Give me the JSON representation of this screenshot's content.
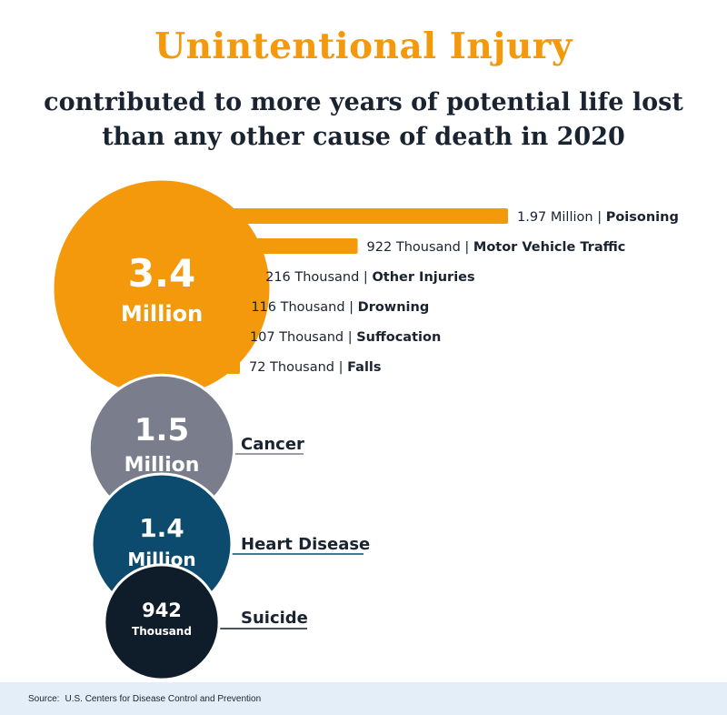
{
  "header": {
    "title": "Unintentional Injury",
    "subtitle_line1": "contributed to more years of potential life lost",
    "subtitle_line2": "than any other cause of death in 2020"
  },
  "colors": {
    "orange": "#F4990B",
    "gray": "#7A7E8C",
    "blue": "#0C4A6E",
    "navy": "#0F1D2B",
    "text": "#1A2330",
    "footer_bg": "#E4EEF8"
  },
  "chart_data": [
    {
      "type": "bubble",
      "series": [
        {
          "name": "Unintentional Injury",
          "value": 3400000,
          "value_line": "3.4",
          "unit_line": "Million",
          "label": ""
        },
        {
          "name": "Cancer",
          "value": 1500000,
          "value_line": "1.5",
          "unit_line": "Million",
          "label": "Cancer"
        },
        {
          "name": "Heart Disease",
          "value": 1400000,
          "value_line": "1.4",
          "unit_line": "Million",
          "label": "Heart Disease"
        },
        {
          "name": "Suicide",
          "value": 942000,
          "value_line": "942",
          "unit_line": "Thousand",
          "label": "Suicide"
        }
      ]
    },
    {
      "type": "bar",
      "orientation": "horizontal",
      "categories": [
        "Poisoning",
        "Motor Vehicle Traffic",
        "Other Injuries",
        "Drowning",
        "Suffocation",
        "Falls"
      ],
      "values": [
        1970000,
        922000,
        216000,
        116000,
        107000,
        72000
      ],
      "value_labels": [
        "1.97 Million |",
        "922 Thousand  |",
        "216 Thousand |",
        "116 Thousand |",
        "107 Thousand |",
        "72 Thousand |"
      ]
    }
  ],
  "footer": {
    "source_label": "Source:",
    "source_text": "U.S. Centers for Disease Control and Prevention"
  }
}
